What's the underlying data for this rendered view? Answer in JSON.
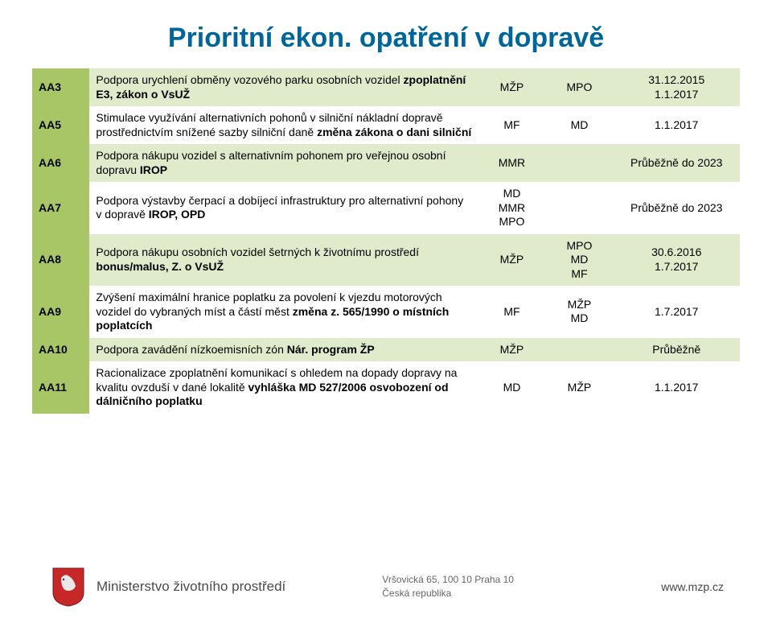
{
  "title": "Prioritní ekon. opatření v dopravě",
  "colors": {
    "title": "#006699",
    "code_bg": "#a8c666",
    "code_fg": "#ffffff",
    "band_bg": "#e0ebcc",
    "text": "#000000"
  },
  "rows": [
    {
      "code": "AA3",
      "band": true,
      "desc_plain": "Podpora urychlení obměny vozového parku osobních vozidel ",
      "desc_bold": "zpoplatnění E3, zákon o VsUŽ",
      "a": "MŽP",
      "b": "MPO",
      "c": "31.12.2015\n1.1.2017"
    },
    {
      "code": "AA5",
      "band": false,
      "desc_plain": "Stimulace využívání alternativních pohonů v silniční nákladní dopravě prostřednictvím snížené sazby silniční daně ",
      "desc_bold": "změna zákona o dani silniční",
      "a": "MF",
      "b": "MD",
      "c": "1.1.2017"
    },
    {
      "code": "AA6",
      "band": true,
      "desc_plain": "Podpora nákupu vozidel s alternativním pohonem pro veřejnou osobní dopravu ",
      "desc_bold": "IROP",
      "a": "MMR",
      "b": "",
      "c": "Průběžně do 2023"
    },
    {
      "code": "AA7",
      "band": false,
      "desc_plain": "Podpora výstavby čerpací a dobíjecí infrastruktury pro alternativní pohony v dopravě ",
      "desc_bold": "IROP, OPD",
      "a": "MD\nMMR\nMPO",
      "b": "",
      "c": "Průběžně do 2023"
    },
    {
      "code": "AA8",
      "band": true,
      "desc_plain": "Podpora nákupu osobních vozidel šetrných k životnímu prostředí ",
      "desc_bold": "bonus/malus, Z. o VsUŽ",
      "a": "MŽP",
      "b": "MPO\nMD\nMF",
      "c": "30.6.2016\n1.7.2017"
    },
    {
      "code": "AA9",
      "band": false,
      "desc_plain": "Zvýšení maximální hranice poplatku za povolení k vjezdu motorových vozidel do vybraných míst a částí měst ",
      "desc_bold": "změna z. 565/1990 o místních poplatcích",
      "a": "MF",
      "b": "MŽP\nMD",
      "c": "1.7.2017"
    },
    {
      "code": "AA10",
      "band": true,
      "desc_plain": "Podpora zavádění nízkoemisních zón ",
      "desc_bold": "Nár. program ŽP",
      "a": "MŽP",
      "b": "",
      "c": "Průběžně"
    },
    {
      "code": "AA11",
      "band": false,
      "desc_plain": "Racionalizace zpoplatnění komunikací s ohledem na dopady dopravy na kvalitu ovzduší v dané lokalitě ",
      "desc_bold": "vyhláška MD 527/2006 osvobození od dálničního poplatku",
      "a": "MD",
      "b": "MŽP",
      "c": "1.1.2017"
    }
  ],
  "footer": {
    "ministry": "Ministerstvo životního prostředí",
    "addr1": "Vršovická 65, 100 10  Praha 10",
    "addr2": "Česká republika",
    "url": "www.mzp.cz"
  }
}
